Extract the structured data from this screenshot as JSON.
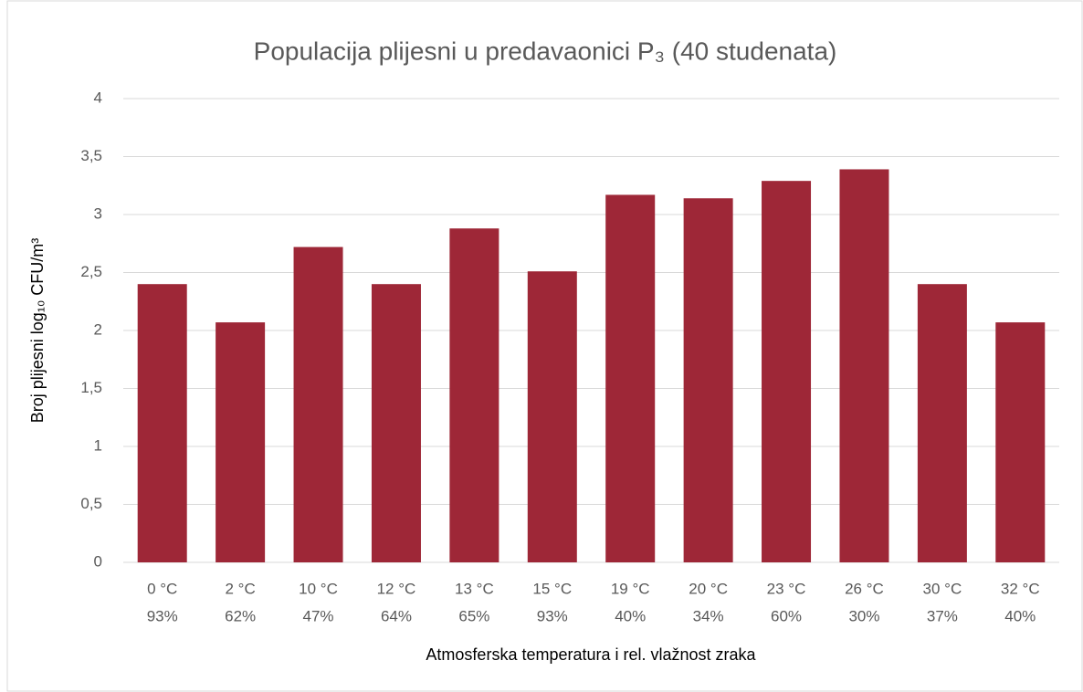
{
  "chart_data": {
    "type": "bar",
    "title": "Populacija plijesni u predavaonici P₃ (40 studenata)",
    "y_label": "Broj plijesni log₁₀ CFU/m³",
    "x_label": "Atmosferska temperatura i rel. vlažnost zraka",
    "categories": [
      [
        "0 °C",
        "93%"
      ],
      [
        "2 °C",
        "62%"
      ],
      [
        "10 °C",
        "47%"
      ],
      [
        "12 °C",
        "64%"
      ],
      [
        "13 °C",
        "65%"
      ],
      [
        "15 °C",
        "93%"
      ],
      [
        "19 °C",
        "40%"
      ],
      [
        "20 °C",
        "34%"
      ],
      [
        "23 °C",
        "60%"
      ],
      [
        "26 °C",
        "30%"
      ],
      [
        "30 °C",
        "37%"
      ],
      [
        "32 °C",
        "40%"
      ]
    ],
    "values": [
      2.4,
      2.07,
      2.72,
      2.4,
      2.88,
      2.51,
      3.17,
      3.14,
      3.29,
      3.39,
      2.4,
      2.07
    ],
    "color": "#9e2737",
    "ylim": [
      0,
      4
    ],
    "yticks": [
      0,
      {
        "value": 0.5,
        "label": "0,5"
      },
      1,
      {
        "value": 1.5,
        "label": "1,5"
      },
      2,
      {
        "value": 2.5,
        "label": "2,5"
      },
      3,
      {
        "value": 3.5,
        "label": "3,5"
      },
      4
    ],
    "grid": true
  }
}
